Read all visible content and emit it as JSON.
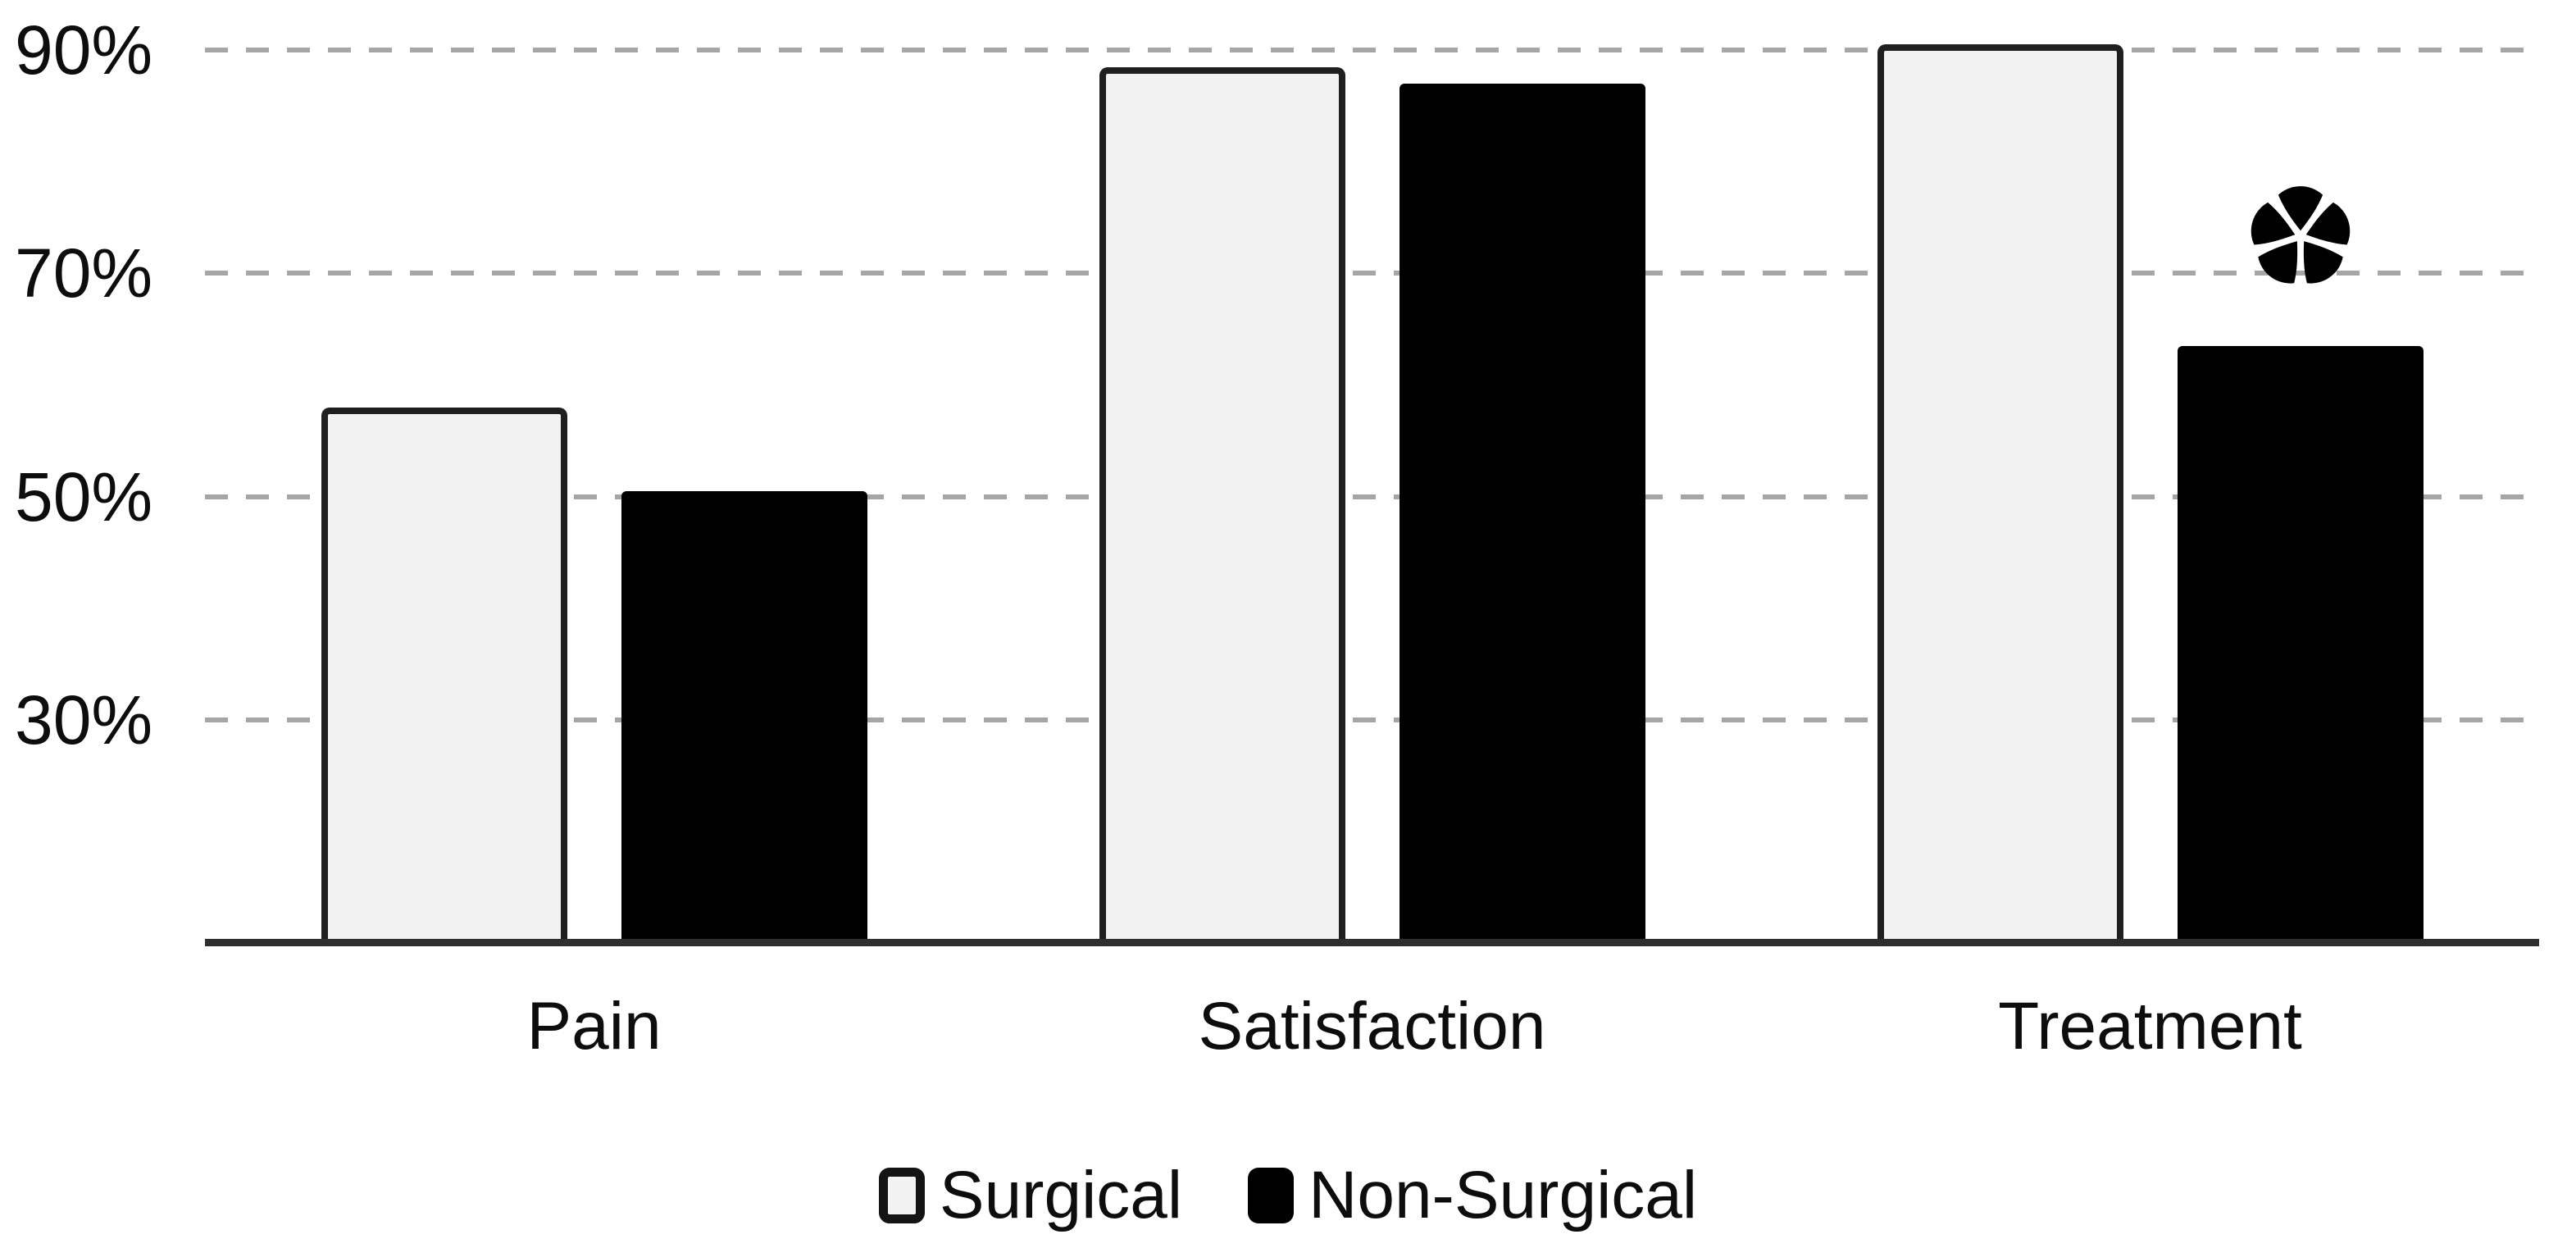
{
  "chart_data": {
    "type": "bar",
    "title": "",
    "xlabel": "",
    "ylabel": "",
    "categories": [
      "Pain",
      "Satisfaction",
      "Treatment"
    ],
    "series": [
      {
        "name": "Surgical",
        "values": [
          58,
          88.5,
          90.5
        ],
        "fill": "#f2f2f2",
        "border": "#1f1f1f"
      },
      {
        "name": "Non-Surgical",
        "values": [
          50.5,
          87,
          63.5
        ],
        "fill": "#000000",
        "border": "#000000"
      }
    ],
    "yticks": [
      {
        "value": 90,
        "label": "90%"
      },
      {
        "value": 70,
        "label": "70%"
      },
      {
        "value": 50,
        "label": "50%"
      },
      {
        "value": 30,
        "label": "30%"
      }
    ],
    "ylim": [
      10,
      94.5
    ],
    "grid": "horizontal-dashed",
    "legend_position": "bottom-center",
    "annotations": [
      {
        "symbol": "*",
        "category": "Treatment",
        "series": "Non-Surgical"
      }
    ]
  },
  "colors": {
    "background": "#ffffff",
    "gridline": "#a6a6a6",
    "axis_line": "#2e2e2e",
    "text": "#0d0d0d",
    "surgical_fill": "#f2f2f2",
    "non_surgical_fill": "#000000"
  }
}
